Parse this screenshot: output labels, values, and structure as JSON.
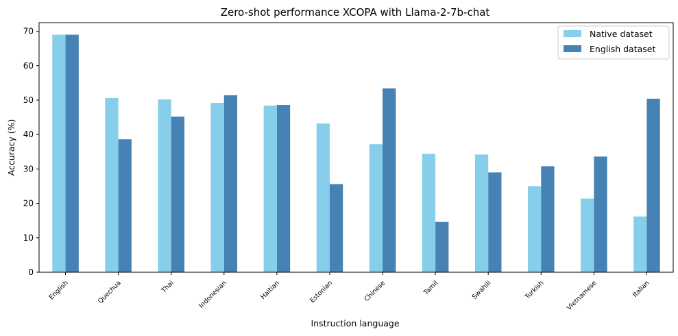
{
  "chart_data": {
    "type": "bar",
    "title": "Zero-shot performance XCOPA with Llama-2-7b-chat",
    "xlabel": "Instruction language",
    "ylabel": "Accuracy (%)",
    "categories": [
      "English",
      "Quechua",
      "Thai",
      "Indonesian",
      "Haitian",
      "Estonian",
      "Chinese",
      "Tamil",
      "Swahili",
      "Turkish",
      "Vietnamese",
      "Italian"
    ],
    "series": [
      {
        "name": "Native dataset",
        "color": "#87ceeb",
        "values": [
          69.0,
          50.6,
          50.2,
          49.2,
          48.4,
          43.2,
          37.2,
          34.4,
          34.2,
          25.0,
          21.4,
          16.2
        ]
      },
      {
        "name": "English dataset",
        "color": "#4682b4",
        "values": [
          69.0,
          38.6,
          45.2,
          51.4,
          48.6,
          25.6,
          53.4,
          14.6,
          29.0,
          30.8,
          33.6,
          50.4
        ]
      }
    ],
    "ylim": [
      0,
      72.5
    ],
    "yticks": [
      0,
      10,
      20,
      30,
      40,
      50,
      60,
      70
    ],
    "grid": false,
    "legend": "top-right"
  }
}
